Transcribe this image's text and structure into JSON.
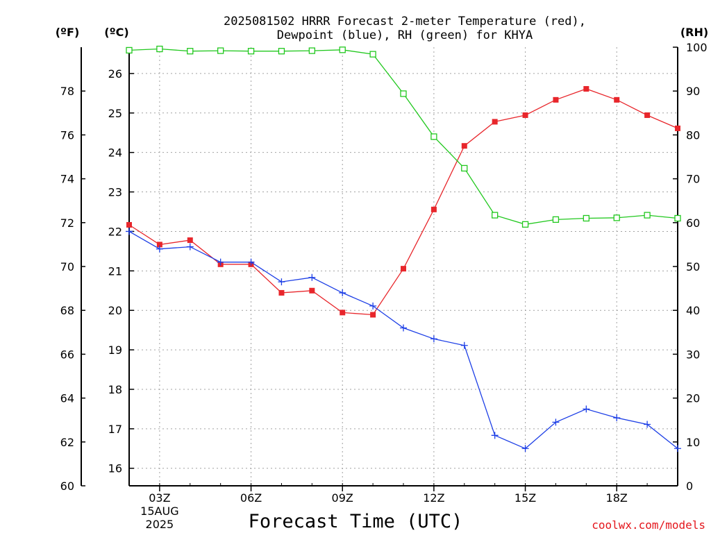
{
  "chart_data": {
    "type": "line",
    "title": [
      "2025081502 HRRR Forecast 2-meter Temperature (red),",
      "Dewpoint (blue), RH (green) for KHYA"
    ],
    "xlabel": "Forecast Time (UTC)",
    "credit": "coolwx.com/models",
    "left_outer_unit": "(ºF)",
    "left_inner_unit": "(ºC)",
    "right_unit": "(RH)",
    "x_hours": [
      2,
      3,
      4,
      5,
      6,
      7,
      8,
      9,
      10,
      11,
      12,
      13,
      14,
      15,
      16,
      17,
      18,
      19,
      20
    ],
    "x_range": [
      2,
      20
    ],
    "x_ticks": [
      {
        "hour": 3,
        "label": "03Z",
        "date": "15AUG",
        "year": "2025"
      },
      {
        "hour": 6,
        "label": "06Z"
      },
      {
        "hour": 9,
        "label": "09Z"
      },
      {
        "hour": 12,
        "label": "12Z"
      },
      {
        "hour": 15,
        "label": "15Z"
      },
      {
        "hour": 18,
        "label": "18Z"
      }
    ],
    "fahrenheit_range": [
      60,
      80
    ],
    "fahrenheit_ticks": [
      "60",
      "62",
      "64",
      "66",
      "68",
      "70",
      "72",
      "74",
      "76",
      "78"
    ],
    "celsius_ticks": [
      "16",
      "17",
      "18",
      "19",
      "20",
      "21",
      "22",
      "23",
      "24",
      "25",
      "26"
    ],
    "rh_range": [
      0,
      100
    ],
    "rh_ticks": [
      "0",
      "10",
      "20",
      "30",
      "40",
      "50",
      "60",
      "70",
      "80",
      "90",
      "100"
    ],
    "grid": true,
    "series": [
      {
        "name": "Temperature",
        "unit": "F",
        "axis": "left",
        "color": "#e8262b",
        "marker": "filled-square",
        "values": [
          71.9,
          71.0,
          71.2,
          70.1,
          70.1,
          68.8,
          68.9,
          67.9,
          67.8,
          69.9,
          72.6,
          75.5,
          76.6,
          76.9,
          77.6,
          78.1,
          77.6,
          76.9,
          76.3
        ]
      },
      {
        "name": "Dewpoint",
        "unit": "F",
        "axis": "left",
        "color": "#1c3ee6",
        "marker": "plus",
        "values": [
          71.6,
          70.8,
          70.9,
          70.2,
          70.2,
          69.3,
          69.5,
          68.8,
          68.2,
          67.2,
          66.7,
          66.4,
          62.3,
          61.7,
          62.9,
          63.5,
          63.1,
          62.8,
          61.7
        ]
      },
      {
        "name": "RH",
        "unit": "%",
        "axis": "right",
        "color": "#21c81e",
        "marker": "open-square",
        "values": [
          99.3,
          99.6,
          99.1,
          99.2,
          99.1,
          99.1,
          99.2,
          99.4,
          98.4,
          89.4,
          79.6,
          72.4,
          61.7,
          59.6,
          60.7,
          61.0,
          61.1,
          61.7,
          61.0
        ]
      }
    ]
  }
}
